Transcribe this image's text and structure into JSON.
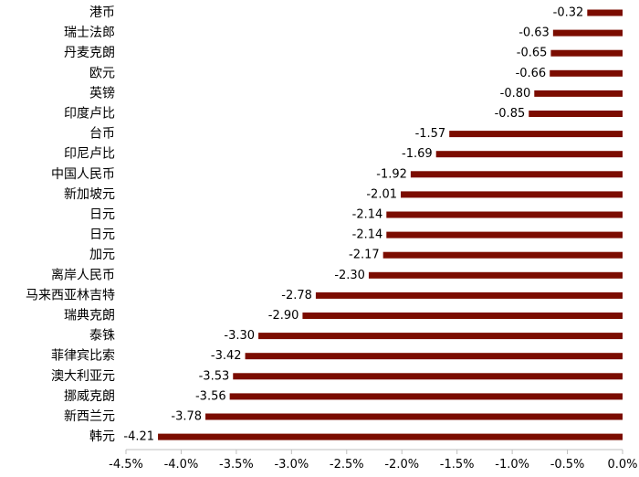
{
  "chart_data": {
    "type": "bar",
    "orientation": "horizontal",
    "categories": [
      "港币",
      "瑞士法郎",
      "丹麦克朗",
      "欧元",
      "英镑",
      "印度卢比",
      "台币",
      "印尼卢比",
      "中国人民币",
      "新加坡元",
      "日元",
      "日元",
      "加元",
      "离岸人民币",
      "马来西亚林吉特",
      "瑞典克朗",
      "泰铢",
      "菲律宾比索",
      "澳大利亚元",
      "挪威克朗",
      "新西兰元",
      "韩元"
    ],
    "values": [
      -0.32,
      -0.63,
      -0.65,
      -0.66,
      -0.8,
      -0.85,
      -1.57,
      -1.69,
      -1.92,
      -2.01,
      -2.14,
      -2.14,
      -2.17,
      -2.3,
      -2.78,
      -2.9,
      -3.3,
      -3.42,
      -3.53,
      -3.56,
      -3.78,
      -4.21
    ],
    "value_labels": [
      "-0.32",
      "-0.63",
      "-0.65",
      "-0.66",
      "-0.80",
      "-0.85",
      "-1.57",
      "-1.69",
      "-1.92",
      "-2.01",
      "-2.14",
      "-2.14",
      "-2.17",
      "-2.30",
      "-2.78",
      "-2.90",
      "-3.30",
      "-3.42",
      "-3.53",
      "-3.56",
      "-3.78",
      "-4.21"
    ],
    "xlim": [
      -4.5,
      0.0
    ],
    "x_ticks": [
      -4.5,
      -4.0,
      -3.5,
      -3.0,
      -2.5,
      -2.0,
      -1.5,
      -1.0,
      -0.5,
      0.0
    ],
    "x_tick_labels": [
      "-4.5%",
      "-4.0%",
      "-3.5%",
      "-3.0%",
      "-2.5%",
      "-2.0%",
      "-1.5%",
      "-1.0%",
      "-0.5%",
      "0.0%"
    ],
    "bar_color": "#7b0c00",
    "grid": false,
    "legend": "none"
  }
}
